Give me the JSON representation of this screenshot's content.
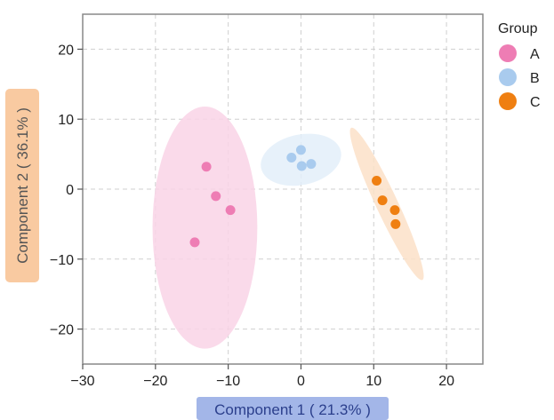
{
  "chart_data": {
    "type": "scatter",
    "xlabel": "Component 1 ( 21.3% )",
    "ylabel": "Component 2 ( 36.1% )",
    "xlim": [
      -30,
      25
    ],
    "ylim": [
      -25,
      25
    ],
    "xticks": [
      -30,
      -20,
      -10,
      0,
      10,
      20
    ],
    "yticks": [
      -20,
      -10,
      0,
      10,
      20
    ],
    "grid": true,
    "legend_title": "Group",
    "legend_position": "right",
    "series": [
      {
        "name": "A",
        "color": "#ee7db4",
        "ellipse_color": "#f9d3e6",
        "points": [
          [
            -13,
            3.2
          ],
          [
            -11.7,
            -1
          ],
          [
            -9.7,
            -3
          ],
          [
            -14.6,
            -7.6
          ]
        ]
      },
      {
        "name": "B",
        "color": "#a9cbee",
        "ellipse_color": "#e3eef9",
        "points": [
          [
            -1.3,
            4.5
          ],
          [
            0,
            5.6
          ],
          [
            0.1,
            3.3
          ],
          [
            1.4,
            3.6
          ]
        ]
      },
      {
        "name": "C",
        "color": "#ef7f11",
        "ellipse_color": "#fbe1c8",
        "points": [
          [
            10.4,
            1.2
          ],
          [
            11.2,
            -1.6
          ],
          [
            12.9,
            -3
          ],
          [
            13,
            -5
          ]
        ]
      }
    ],
    "ellipses": [
      {
        "group": "A",
        "cx": -13.2,
        "cy": -5.5,
        "rx": 7.2,
        "ry": 17.3,
        "angle_deg": 0
      },
      {
        "group": "B",
        "cx": 0,
        "cy": 4.2,
        "rx": 5.6,
        "ry": 3.6,
        "angle_deg": -12
      },
      {
        "group": "C",
        "cx": 11.8,
        "cy": -2.1,
        "rx": 1.5,
        "ry": 12,
        "angle_deg": -25
      }
    ]
  }
}
